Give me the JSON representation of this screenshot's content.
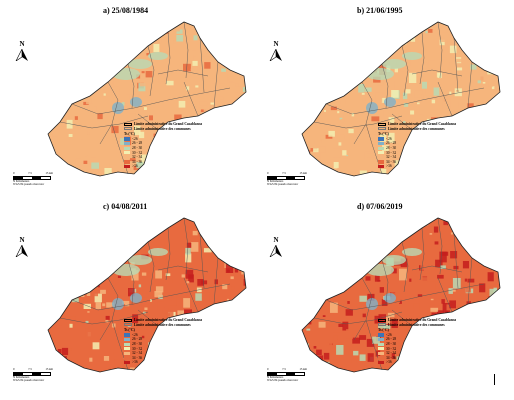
{
  "figure": {
    "panels": [
      {
        "title": "a) 25/08/1984",
        "north_label": "N",
        "legend_limit_gc": "Limite administrative du Grand Casablanca",
        "legend_limit_communes": "Limite administrative des communes",
        "legend_ts_title": "Ts (°C)",
        "scale_ticks": [
          "0",
          "7.5",
          "15 km"
        ],
        "scale_note": "N Kilometers",
        "projection": "WGS 84 pseudo mercator",
        "dominant_class": "32 - 34"
      },
      {
        "title": "b) 21/06/1995",
        "north_label": "N",
        "legend_limit_gc": "Limite administrative du Grand Casablanca",
        "legend_limit_communes": "Limite administrative des communes",
        "legend_ts_title": "Ts (°C)",
        "scale_ticks": [
          "0",
          "7.5",
          "15 km"
        ],
        "scale_note": "N Kilometers",
        "projection": "WGS 84 pseudo mercator",
        "dominant_class": "32 - 34"
      },
      {
        "title": "c) 04/08/2011",
        "north_label": "N",
        "legend_limit_gc": "Limite administrative du Grand Casablanca",
        "legend_limit_communes": "Limite administrative des communes",
        "legend_ts_title": "Ts (°C)",
        "scale_ticks": [
          "0",
          "7.5",
          "15 km"
        ],
        "scale_note": "N Kilometers",
        "projection": "WGS 84 pseudo mercator",
        "dominant_class": "34 - 36"
      },
      {
        "title": "d) 07/06/2019",
        "north_label": "N",
        "legend_limit_gc": "Limite administrative du Grand Casablanca",
        "legend_limit_communes": "Limite administrative des communes",
        "legend_ts_title": "Ts (°C)",
        "scale_ticks": [
          "0",
          "7.5",
          "15 km"
        ],
        "scale_note": "N Kilometers",
        "projection": "WGS 84 pseudo mercator",
        "dominant_class": ">36"
      }
    ],
    "temperature_classes": [
      {
        "label": "<26",
        "color": "#3b74b8"
      },
      {
        "label": "26 - 28",
        "color": "#7fb1c9"
      },
      {
        "label": "28 - 30",
        "color": "#b9d9b4"
      },
      {
        "label": "30 - 32",
        "color": "#f3efb2"
      },
      {
        "label": "32 - 34",
        "color": "#f6b57c"
      },
      {
        "label": "34 - 36",
        "color": "#e86a3f"
      },
      {
        "label": ">36",
        "color": "#c41d1d"
      }
    ]
  }
}
